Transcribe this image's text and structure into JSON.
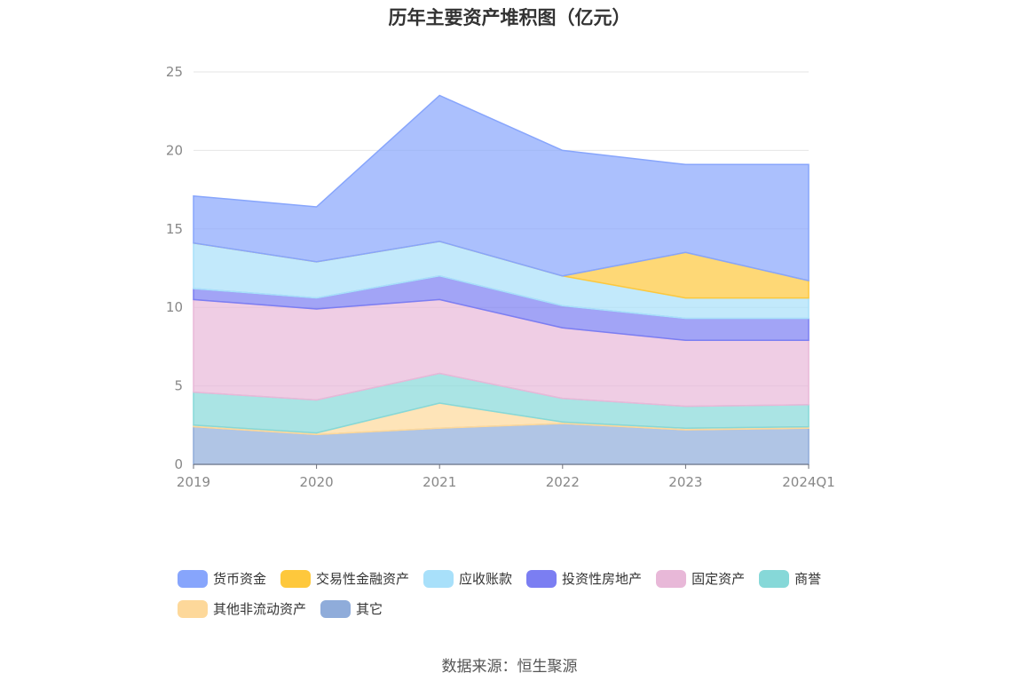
{
  "page": {
    "title": "历年主要资产堆积图（亿元）",
    "source": "数据来源：恒生聚源"
  },
  "chart_data": {
    "type": "area",
    "stacked": true,
    "title": "历年主要资产堆积图（亿元）",
    "categories": [
      "2019",
      "2020",
      "2021",
      "2022",
      "2023",
      "2024Q1"
    ],
    "ylim": [
      0,
      25
    ],
    "yticks": [
      0,
      5,
      10,
      15,
      20,
      25
    ],
    "grid": true,
    "legend_position": "bottom",
    "series": [
      {
        "name": "其它",
        "color": "#8facda",
        "values": [
          2.4,
          1.9,
          2.3,
          2.6,
          2.2,
          2.3
        ]
      },
      {
        "name": "其他非流动资产",
        "color": "#fdd89a",
        "values": [
          0.1,
          0.1,
          1.6,
          0.1,
          0.1,
          0.1
        ]
      },
      {
        "name": "商誉",
        "color": "#86d8d8",
        "values": [
          2.1,
          2.1,
          1.9,
          1.5,
          1.4,
          1.4
        ]
      },
      {
        "name": "固定资产",
        "color": "#e8b8d8",
        "values": [
          5.9,
          5.8,
          4.7,
          4.5,
          4.2,
          4.1
        ]
      },
      {
        "name": "投资性房地产",
        "color": "#7b7ef2",
        "values": [
          0.7,
          0.7,
          1.5,
          1.4,
          1.4,
          1.4
        ]
      },
      {
        "name": "应收账款",
        "color": "#a8e0fa",
        "values": [
          2.9,
          2.3,
          2.2,
          1.9,
          1.3,
          1.3
        ]
      },
      {
        "name": "交易性金融资产",
        "color": "#fec83c",
        "values": [
          0.0,
          0.0,
          0.0,
          0.0,
          2.9,
          1.1
        ]
      },
      {
        "name": "货币资金",
        "color": "#87a5fc",
        "values": [
          3.0,
          3.5,
          9.3,
          8.0,
          5.6,
          7.4
        ]
      }
    ]
  },
  "legend": [
    {
      "label": "货币资金",
      "color": "#87a5fc"
    },
    {
      "label": "交易性金融资产",
      "color": "#fec83c"
    },
    {
      "label": "应收账款",
      "color": "#a8e0fa"
    },
    {
      "label": "投资性房地产",
      "color": "#7b7ef2"
    },
    {
      "label": "固定资产",
      "color": "#e8b8d8"
    },
    {
      "label": "商誉",
      "color": "#86d8d8"
    },
    {
      "label": "其他非流动资产",
      "color": "#fdd89a"
    },
    {
      "label": "其它",
      "color": "#8facda"
    }
  ]
}
